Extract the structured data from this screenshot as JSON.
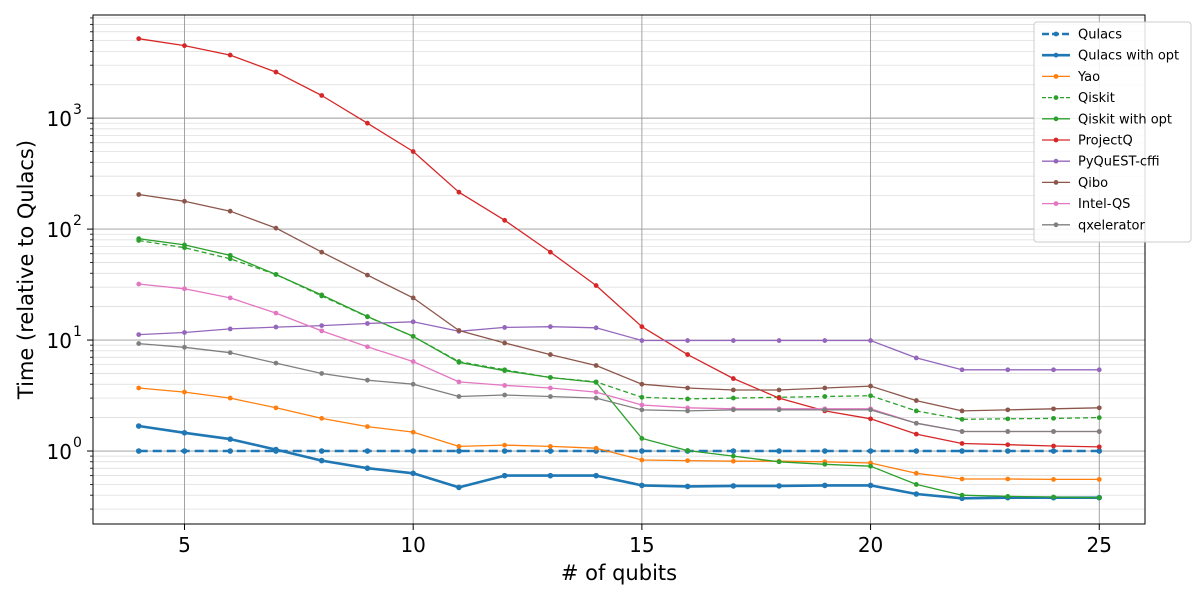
{
  "chart_data": {
    "type": "line",
    "title": "",
    "xlabel": "# of qubits",
    "ylabel": "Time (relative to Qulacs)",
    "yscale": "log",
    "xlim": [
      3.0,
      26.0
    ],
    "ylim": [
      0.22,
      8500
    ],
    "xticks": [
      5,
      10,
      15,
      20,
      25
    ],
    "xtick_labels": [
      "5",
      "10",
      "15",
      "20",
      "25"
    ],
    "yticks": [
      1,
      10,
      100,
      1000
    ],
    "ytick_labels": [
      "10",
      "10",
      "10",
      "10"
    ],
    "ytick_exponents": [
      "0",
      "1",
      "2",
      "3"
    ],
    "grid": true,
    "legend_position": "top-right",
    "x": [
      4,
      5,
      6,
      7,
      8,
      9,
      10,
      11,
      12,
      13,
      14,
      15,
      16,
      17,
      18,
      19,
      20,
      21,
      22,
      23,
      24,
      25
    ],
    "series": [
      {
        "name": "Qulacs",
        "color": "#1f77b4",
        "dash": "dashed",
        "width": 2.6,
        "values": [
          1,
          1,
          1,
          1,
          1,
          1,
          1,
          1,
          1,
          1,
          1,
          1,
          1,
          1,
          1,
          1,
          1,
          1,
          1,
          1,
          1,
          1
        ]
      },
      {
        "name": "Qulacs with opt",
        "color": "#1f77b4",
        "dash": "solid",
        "width": 2.6,
        "values": [
          1.68,
          1.46,
          1.28,
          1.03,
          0.82,
          0.7,
          0.63,
          0.47,
          0.6,
          0.6,
          0.6,
          0.49,
          0.48,
          0.485,
          0.485,
          0.49,
          0.49,
          0.41,
          0.375,
          0.38,
          0.38,
          0.38
        ]
      },
      {
        "name": "Yao",
        "color": "#ff7f0e",
        "dash": "solid",
        "width": 1.3,
        "values": [
          3.7,
          3.4,
          3.0,
          2.45,
          1.97,
          1.66,
          1.48,
          1.1,
          1.13,
          1.1,
          1.06,
          0.83,
          0.82,
          0.81,
          0.81,
          0.8,
          0.78,
          0.63,
          0.56,
          0.56,
          0.555,
          0.555
        ]
      },
      {
        "name": "Qiskit",
        "color": "#2ca02c",
        "dash": "dashed",
        "width": 1.3,
        "values": [
          79,
          68,
          54,
          39,
          25,
          16.2,
          10.8,
          6.4,
          5.4,
          4.6,
          4.2,
          3.05,
          2.95,
          3.0,
          3.05,
          3.1,
          3.15,
          2.3,
          1.93,
          1.95,
          1.97,
          2.0
        ]
      },
      {
        "name": "Qiskit with opt",
        "color": "#2ca02c",
        "dash": "solid",
        "width": 1.3,
        "values": [
          82,
          72,
          58,
          39,
          25.5,
          16.3,
          10.8,
          6.3,
          5.3,
          4.6,
          4.15,
          1.3,
          1.01,
          0.9,
          0.8,
          0.76,
          0.73,
          0.5,
          0.4,
          0.39,
          0.385,
          0.38
        ]
      },
      {
        "name": "ProjectQ",
        "color": "#d62728",
        "dash": "solid",
        "width": 1.3,
        "values": [
          5200,
          4500,
          3700,
          2600,
          1600,
          900,
          500,
          215,
          120,
          62,
          31,
          13.2,
          7.4,
          4.5,
          3.0,
          2.3,
          1.95,
          1.42,
          1.17,
          1.14,
          1.11,
          1.09
        ]
      },
      {
        "name": "PyQuEST-cffi",
        "color": "#9467bd",
        "dash": "solid",
        "width": 1.3,
        "values": [
          11.2,
          11.7,
          12.6,
          13.1,
          13.5,
          14.1,
          14.6,
          12.0,
          13.0,
          13.2,
          12.9,
          9.9,
          9.9,
          9.9,
          9.9,
          9.9,
          9.9,
          6.9,
          5.4,
          5.4,
          5.4,
          5.4
        ]
      },
      {
        "name": "Qibo",
        "color": "#8c564b",
        "dash": "solid",
        "width": 1.3,
        "values": [
          205,
          178,
          145,
          102,
          62,
          38.5,
          24,
          12.2,
          9.4,
          7.4,
          5.9,
          4.0,
          3.7,
          3.55,
          3.55,
          3.7,
          3.85,
          2.85,
          2.3,
          2.35,
          2.4,
          2.45
        ]
      },
      {
        "name": "Intel-QS",
        "color": "#e377c2",
        "dash": "solid",
        "width": 1.3,
        "values": [
          32,
          29,
          24,
          17.5,
          12.1,
          8.7,
          6.4,
          4.2,
          3.9,
          3.7,
          3.4,
          2.6,
          2.45,
          2.4,
          2.4,
          2.4,
          2.4,
          1.78,
          1.5,
          1.5,
          1.5,
          1.5
        ]
      },
      {
        "name": "qxelerator",
        "color": "#7f7f7f",
        "dash": "solid",
        "width": 1.3,
        "values": [
          9.3,
          8.6,
          7.7,
          6.2,
          5.0,
          4.35,
          4.0,
          3.1,
          3.2,
          3.1,
          3.0,
          2.35,
          2.3,
          2.35,
          2.35,
          2.35,
          2.35,
          1.78,
          1.5,
          1.5,
          1.5,
          1.5
        ]
      }
    ]
  }
}
